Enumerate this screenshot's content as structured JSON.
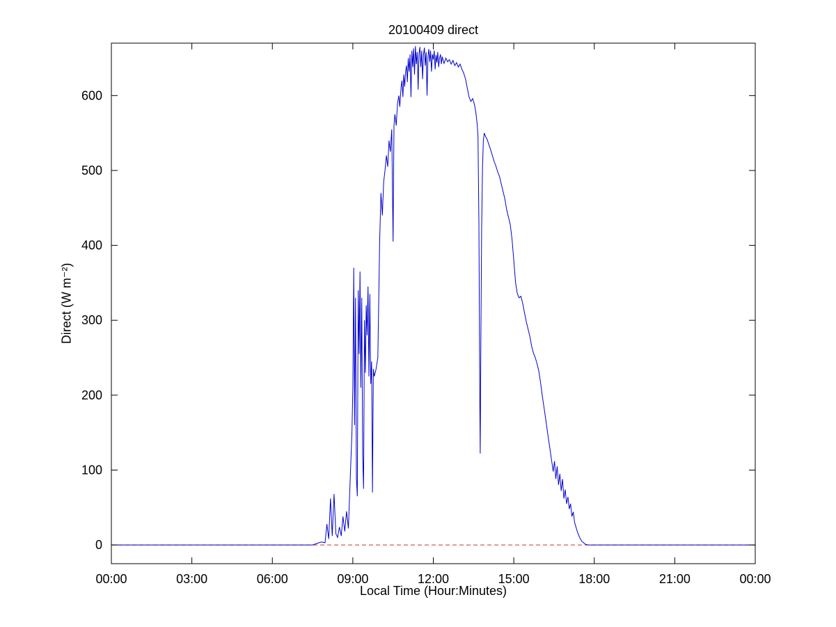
{
  "chart_data": {
    "type": "line",
    "title": "20100409 direct",
    "xlabel": "Local Time (Hour:Minutes)",
    "ylabel": "Direct (W m⁻²)",
    "x_unit": "minutes since midnight",
    "xlim_minutes": [
      0,
      1440
    ],
    "ylim": [
      -25,
      670
    ],
    "grid": false,
    "legend": null,
    "x_ticks": [
      {
        "minutes": 0,
        "label": "00:00"
      },
      {
        "minutes": 180,
        "label": "03:00"
      },
      {
        "minutes": 360,
        "label": "06:00"
      },
      {
        "minutes": 540,
        "label": "09:00"
      },
      {
        "minutes": 720,
        "label": "12:00"
      },
      {
        "minutes": 900,
        "label": "15:00"
      },
      {
        "minutes": 1080,
        "label": "18:00"
      },
      {
        "minutes": 1260,
        "label": "21:00"
      },
      {
        "minutes": 1440,
        "label": "00:00"
      }
    ],
    "y_ticks": [
      0,
      100,
      200,
      300,
      400,
      500,
      600
    ],
    "colors": {
      "direct_line": "#0000cc",
      "zero_reference": "#cc3333",
      "axes": "#000000"
    },
    "series": [
      {
        "name": "zero-reference",
        "color": "#cc3333",
        "style": "dashed",
        "points": [
          [
            0,
            0
          ],
          [
            1440,
            0
          ]
        ]
      },
      {
        "name": "direct-irradiance",
        "color": "#0000cc",
        "style": "solid",
        "points": [
          [
            0,
            0
          ],
          [
            450,
            0
          ],
          [
            460,
            2
          ],
          [
            470,
            4
          ],
          [
            478,
            3
          ],
          [
            482,
            28
          ],
          [
            486,
            8
          ],
          [
            490,
            62
          ],
          [
            494,
            12
          ],
          [
            498,
            68
          ],
          [
            502,
            15
          ],
          [
            506,
            10
          ],
          [
            510,
            24
          ],
          [
            514,
            12
          ],
          [
            518,
            38
          ],
          [
            522,
            18
          ],
          [
            526,
            45
          ],
          [
            530,
            22
          ],
          [
            534,
            85
          ],
          [
            538,
            150
          ],
          [
            540,
            210
          ],
          [
            542,
            370
          ],
          [
            544,
            160
          ],
          [
            546,
            330
          ],
          [
            548,
            90
          ],
          [
            550,
            65
          ],
          [
            552,
            340
          ],
          [
            554,
            255
          ],
          [
            556,
            365
          ],
          [
            558,
            210
          ],
          [
            560,
            330
          ],
          [
            562,
            120
          ],
          [
            564,
            75
          ],
          [
            566,
            300
          ],
          [
            568,
            230
          ],
          [
            570,
            320
          ],
          [
            572,
            280
          ],
          [
            574,
            345
          ],
          [
            576,
            225
          ],
          [
            578,
            335
          ],
          [
            580,
            215
          ],
          [
            582,
            245
          ],
          [
            584,
            70
          ],
          [
            586,
            235
          ],
          [
            588,
            225
          ],
          [
            592,
            235
          ],
          [
            596,
            250
          ],
          [
            600,
            405
          ],
          [
            603,
            470
          ],
          [
            606,
            440
          ],
          [
            609,
            485
          ],
          [
            612,
            500
          ],
          [
            615,
            520
          ],
          [
            618,
            505
          ],
          [
            621,
            540
          ],
          [
            624,
            525
          ],
          [
            627,
            555
          ],
          [
            630,
            405
          ],
          [
            632,
            560
          ],
          [
            634,
            575
          ],
          [
            637,
            560
          ],
          [
            640,
            590
          ],
          [
            643,
            600
          ],
          [
            645,
            585
          ],
          [
            648,
            612
          ],
          [
            650,
            620
          ],
          [
            652,
            598
          ],
          [
            654,
            628
          ],
          [
            656,
            612
          ],
          [
            658,
            632
          ],
          [
            660,
            640
          ],
          [
            662,
            618
          ],
          [
            664,
            650
          ],
          [
            666,
            632
          ],
          [
            668,
            655
          ],
          [
            670,
            598
          ],
          [
            672,
            660
          ],
          [
            674,
            638
          ],
          [
            676,
            663
          ],
          [
            678,
            628
          ],
          [
            680,
            666
          ],
          [
            682,
            642
          ],
          [
            684,
            658
          ],
          [
            686,
            608
          ],
          [
            688,
            655
          ],
          [
            690,
            665
          ],
          [
            692,
            638
          ],
          [
            694,
            660
          ],
          [
            696,
            622
          ],
          [
            698,
            655
          ],
          [
            700,
            664
          ],
          [
            702,
            640
          ],
          [
            704,
            658
          ],
          [
            706,
            600
          ],
          [
            708,
            652
          ],
          [
            710,
            662
          ],
          [
            712,
            645
          ],
          [
            714,
            660
          ],
          [
            716,
            632
          ],
          [
            718,
            655
          ],
          [
            720,
            648
          ],
          [
            722,
            660
          ],
          [
            724,
            635
          ],
          [
            726,
            654
          ],
          [
            728,
            644
          ],
          [
            730,
            658
          ],
          [
            732,
            638
          ],
          [
            734,
            650
          ],
          [
            736,
            655
          ],
          [
            738,
            642
          ],
          [
            740,
            652
          ],
          [
            744,
            643
          ],
          [
            748,
            650
          ],
          [
            752,
            645
          ],
          [
            756,
            648
          ],
          [
            760,
            642
          ],
          [
            764,
            647
          ],
          [
            768,
            640
          ],
          [
            772,
            644
          ],
          [
            776,
            638
          ],
          [
            780,
            642
          ],
          [
            784,
            635
          ],
          [
            788,
            630
          ],
          [
            792,
            622
          ],
          [
            796,
            610
          ],
          [
            800,
            598
          ],
          [
            804,
            592
          ],
          [
            808,
            596
          ],
          [
            812,
            588
          ],
          [
            815,
            578
          ],
          [
            818,
            562
          ],
          [
            820,
            545
          ],
          [
            822,
            430
          ],
          [
            824,
            190
          ],
          [
            825,
            122
          ],
          [
            826,
            240
          ],
          [
            828,
            420
          ],
          [
            830,
            505
          ],
          [
            832,
            540
          ],
          [
            834,
            550
          ],
          [
            837,
            545
          ],
          [
            840,
            542
          ],
          [
            844,
            535
          ],
          [
            848,
            528
          ],
          [
            852,
            520
          ],
          [
            856,
            512
          ],
          [
            860,
            506
          ],
          [
            864,
            498
          ],
          [
            868,
            492
          ],
          [
            872,
            482
          ],
          [
            876,
            472
          ],
          [
            880,
            462
          ],
          [
            884,
            448
          ],
          [
            888,
            438
          ],
          [
            892,
            428
          ],
          [
            896,
            408
          ],
          [
            900,
            380
          ],
          [
            904,
            350
          ],
          [
            908,
            335
          ],
          [
            912,
            330
          ],
          [
            916,
            332
          ],
          [
            920,
            322
          ],
          [
            924,
            310
          ],
          [
            928,
            298
          ],
          [
            932,
            288
          ],
          [
            936,
            278
          ],
          [
            940,
            265
          ],
          [
            944,
            256
          ],
          [
            948,
            250
          ],
          [
            952,
            242
          ],
          [
            956,
            232
          ],
          [
            960,
            216
          ],
          [
            964,
            198
          ],
          [
            968,
            182
          ],
          [
            972,
            165
          ],
          [
            976,
            148
          ],
          [
            980,
            132
          ],
          [
            984,
            115
          ],
          [
            988,
            98
          ],
          [
            991,
            112
          ],
          [
            994,
            88
          ],
          [
            997,
            105
          ],
          [
            1000,
            80
          ],
          [
            1003,
            95
          ],
          [
            1006,
            72
          ],
          [
            1009,
            88
          ],
          [
            1012,
            62
          ],
          [
            1015,
            74
          ],
          [
            1018,
            55
          ],
          [
            1021,
            64
          ],
          [
            1024,
            48
          ],
          [
            1027,
            55
          ],
          [
            1030,
            38
          ],
          [
            1033,
            44
          ],
          [
            1036,
            30
          ],
          [
            1039,
            24
          ],
          [
            1042,
            18
          ],
          [
            1045,
            13
          ],
          [
            1048,
            9
          ],
          [
            1052,
            5
          ],
          [
            1056,
            3
          ],
          [
            1060,
            1
          ],
          [
            1066,
            0
          ],
          [
            1440,
            0
          ]
        ]
      }
    ]
  }
}
